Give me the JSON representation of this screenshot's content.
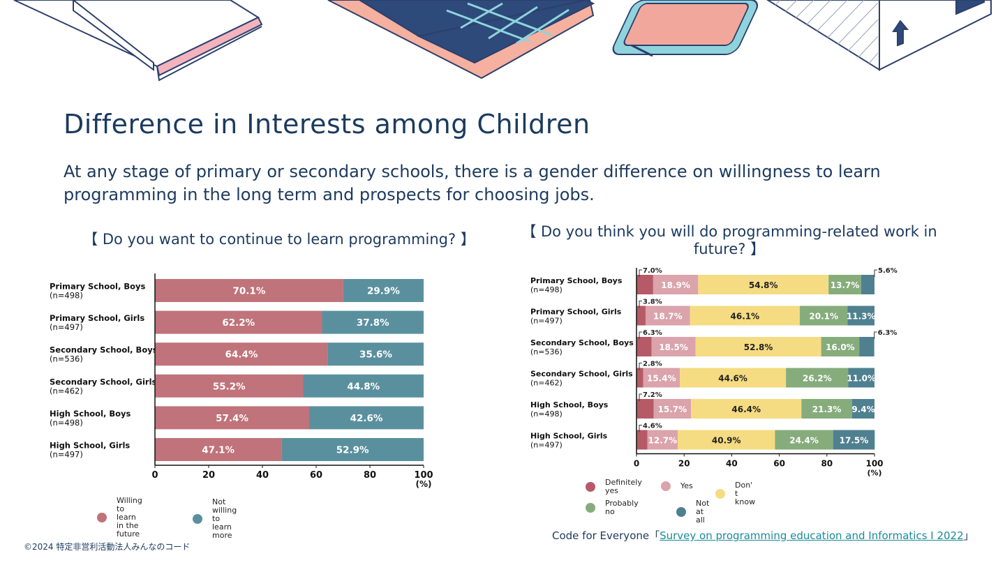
{
  "title": "Difference in Interests among Children",
  "subtitle": "At any stage of primary or secondary schools, there is a gender difference on willingness to learn programming in the long term and prospects for choosing jobs.",
  "colors": {
    "heading": "#1c3a5e",
    "willing": "#c0737a",
    "not_willing": "#5a909e",
    "definitely_yes": "#b55a66",
    "yes": "#dba3ab",
    "dont_know": "#f5dc82",
    "probably_no": "#86ac7c",
    "not_at_all": "#4f8090",
    "link": "#1a8a9a"
  },
  "chart_data": [
    {
      "type": "bar",
      "orientation": "horizontal",
      "stacked": true,
      "title": "【 Do you want to continue to learn programming? 】",
      "categories": [
        [
          "Primary School, Boys",
          "(n=498)"
        ],
        [
          "Primary School, Girls",
          "(n=497)"
        ],
        [
          "Secondary School, Boys",
          "(n=536)"
        ],
        [
          "Secondary School, Girls",
          "(n=462)"
        ],
        [
          "High School, Boys",
          "(n=498)"
        ],
        [
          "High School, Girls",
          "(n=497)"
        ]
      ],
      "series": [
        {
          "name": "Willing to learn\nin the future",
          "color": "#c0737a",
          "values": [
            70.1,
            62.2,
            64.4,
            55.2,
            57.4,
            47.1
          ]
        },
        {
          "name": "Not willing to learn more",
          "color": "#5a909e",
          "values": [
            29.9,
            37.8,
            35.6,
            44.8,
            42.6,
            52.9
          ]
        }
      ],
      "xlim": [
        0,
        100
      ],
      "xticks": [
        0,
        20,
        40,
        60,
        80,
        100
      ],
      "xunit": "(%)",
      "grid": false,
      "legend": "bottom"
    },
    {
      "type": "bar",
      "orientation": "horizontal",
      "stacked": true,
      "title": "【 Do you think you will do programming-related work in future? 】",
      "categories": [
        [
          "Primary School, Boys",
          "(n=498)"
        ],
        [
          "Primary School, Girls",
          "(n=497)"
        ],
        [
          "Secondary School, Boys",
          "(n=536)"
        ],
        [
          "Secondary School, Girls",
          "(n=462)"
        ],
        [
          "High School, Boys",
          "(n=498)"
        ],
        [
          "High School, Girls",
          "(n=497)"
        ]
      ],
      "series": [
        {
          "name": "Definitely\nyes",
          "color": "#b55a66",
          "values": [
            7.0,
            3.8,
            6.3,
            2.8,
            7.2,
            4.6
          ]
        },
        {
          "name": "Yes",
          "color": "#dba3ab",
          "values": [
            18.9,
            18.7,
            18.5,
            15.4,
            15.7,
            12.7
          ]
        },
        {
          "name": "Don' t know",
          "color": "#f5dc82",
          "values": [
            54.8,
            46.1,
            52.8,
            44.6,
            46.4,
            40.9
          ]
        },
        {
          "name": "Probably no",
          "color": "#86ac7c",
          "values": [
            13.7,
            20.1,
            16.0,
            26.2,
            21.3,
            24.4
          ]
        },
        {
          "name": "Not at all",
          "color": "#4f8090",
          "values": [
            5.6,
            11.3,
            6.3,
            11.0,
            9.4,
            17.5
          ]
        }
      ],
      "xlim": [
        0,
        100
      ],
      "xticks": [
        0,
        20,
        40,
        60,
        80,
        100
      ],
      "xunit": "(%)",
      "grid": false,
      "legend": "bottom"
    }
  ],
  "footer": {
    "copyright": "©2024 特定非営利活動法人みんなのコード",
    "source_prefix": "Code for Everyone「",
    "source_link": "Survey on programming education and Informatics I 2022",
    "source_suffix": "」"
  }
}
